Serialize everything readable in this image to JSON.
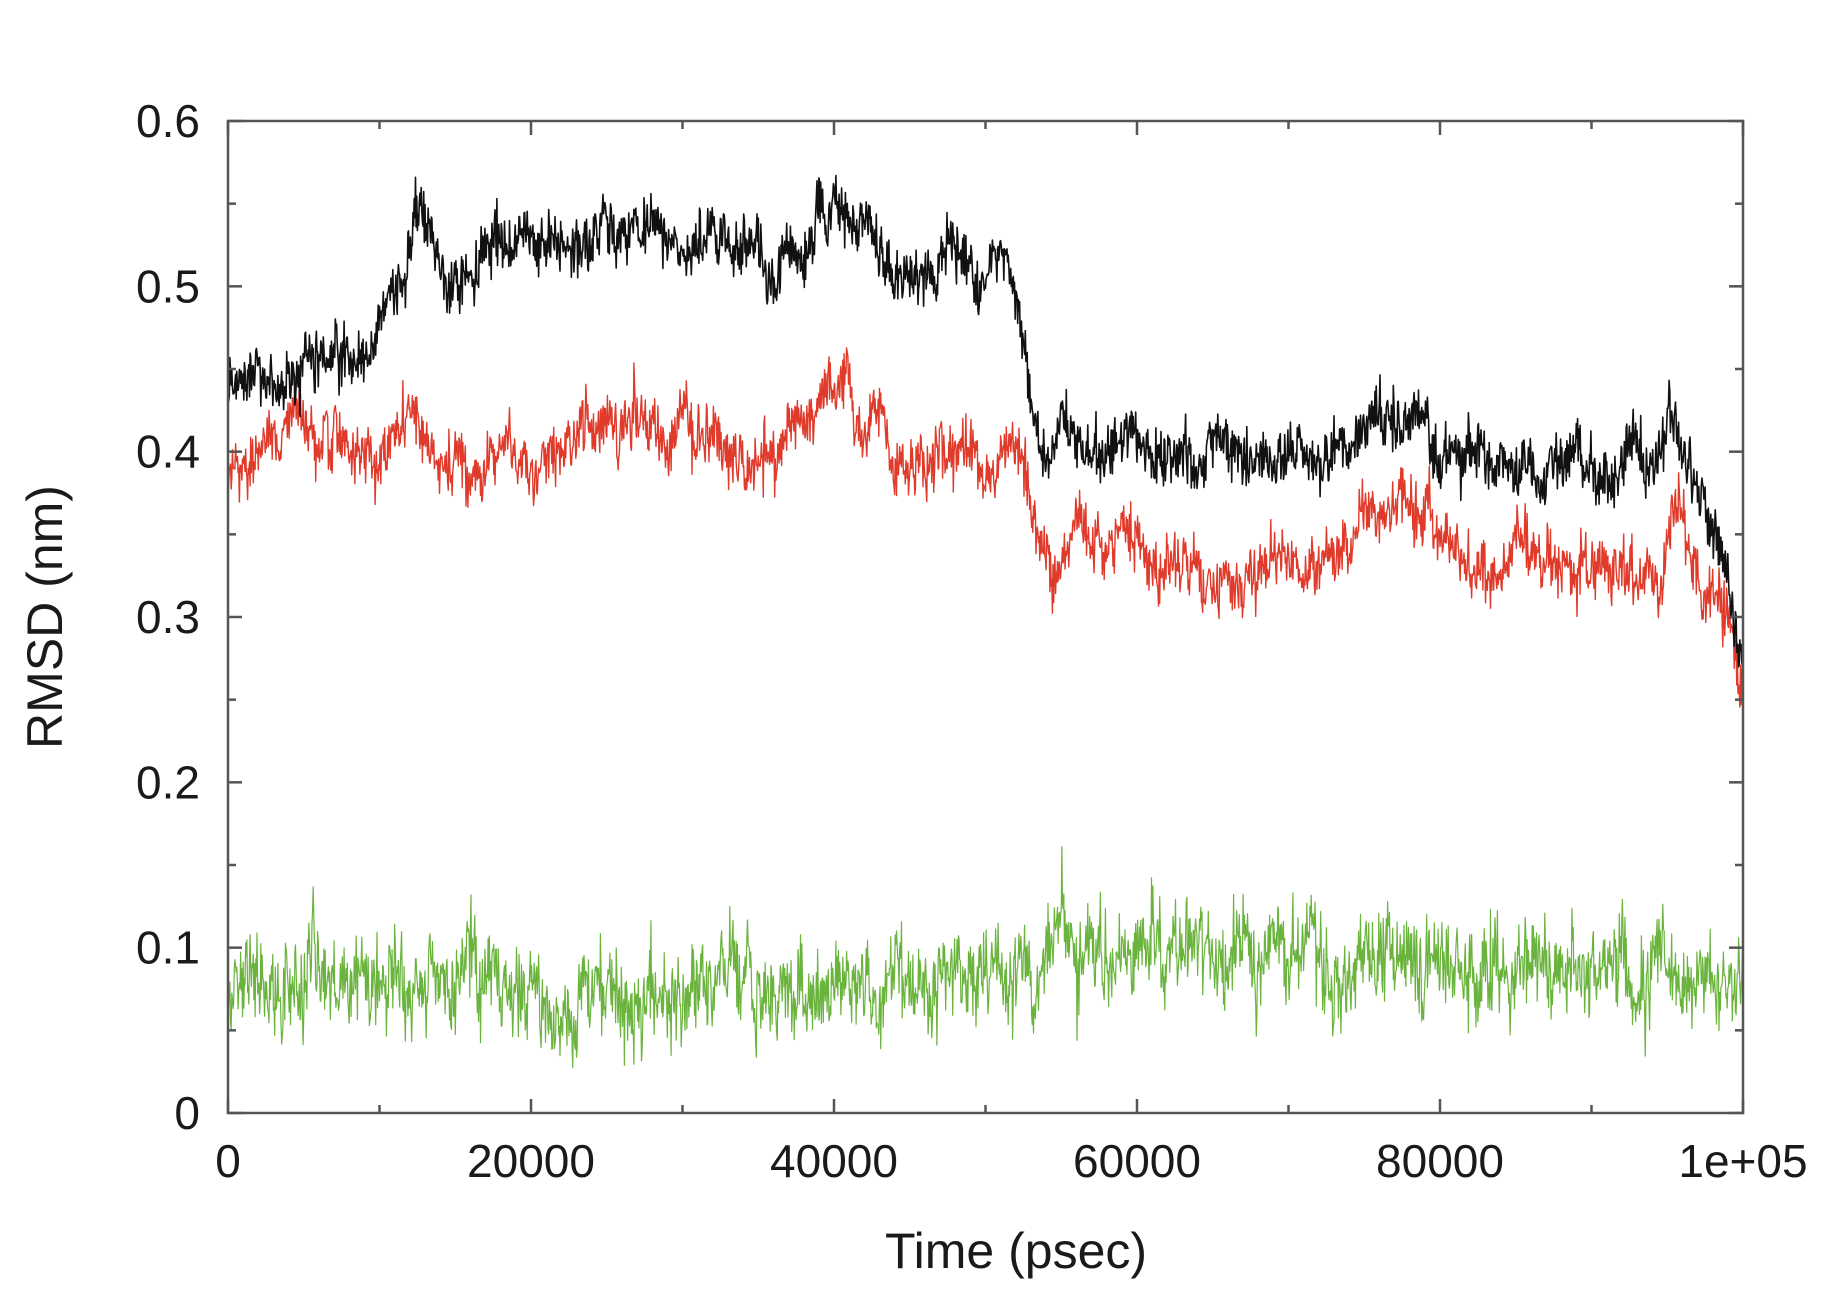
{
  "chart_data": {
    "type": "line",
    "title": "",
    "xlabel": "Time (psec)",
    "ylabel": "RMSD (nm)",
    "xlim": [
      0,
      100000
    ],
    "ylim": [
      0,
      0.6
    ],
    "x_ticks": [
      0,
      20000,
      40000,
      60000,
      80000,
      100000
    ],
    "x_tick_labels": [
      "0",
      "20000",
      "40000",
      "60000",
      "80000",
      "1e+05"
    ],
    "x_minor_ticks": [
      10000,
      30000,
      50000,
      70000,
      90000
    ],
    "y_ticks": [
      0,
      0.1,
      0.2,
      0.3,
      0.4,
      0.5,
      0.6
    ],
    "y_tick_labels": [
      "0",
      "0.1",
      "0.2",
      "0.3",
      "0.4",
      "0.5",
      "0.6"
    ],
    "y_minor_ticks": [
      0.05,
      0.15,
      0.25,
      0.35,
      0.45,
      0.55
    ],
    "grid": false,
    "legend": "none",
    "series": [
      {
        "color": "#111111",
        "noise": 0.014,
        "x": [
          0,
          2000,
          4000,
          6000,
          8000,
          9500,
          10500,
          12000,
          12800,
          14000,
          16000,
          18000,
          20000,
          22000,
          24000,
          26000,
          28000,
          30000,
          32000,
          34000,
          36000,
          38000,
          39500,
          40000,
          42000,
          43500,
          44000,
          46000,
          48000,
          50000,
          51000,
          52000,
          53000,
          54000,
          56000,
          58000,
          60000,
          62000,
          64000,
          66000,
          68000,
          70000,
          72000,
          74000,
          75000,
          76000,
          78000,
          80000,
          82000,
          84000,
          86000,
          88000,
          90000,
          92000,
          94000,
          95500,
          97000,
          98000,
          99000,
          100000
        ],
        "y": [
          0.44,
          0.45,
          0.44,
          0.45,
          0.46,
          0.45,
          0.5,
          0.52,
          0.54,
          0.51,
          0.51,
          0.52,
          0.53,
          0.53,
          0.52,
          0.53,
          0.53,
          0.52,
          0.53,
          0.52,
          0.51,
          0.52,
          0.53,
          0.55,
          0.53,
          0.52,
          0.5,
          0.5,
          0.5,
          0.51,
          0.52,
          0.5,
          0.43,
          0.4,
          0.41,
          0.4,
          0.4,
          0.4,
          0.39,
          0.4,
          0.4,
          0.4,
          0.39,
          0.4,
          0.41,
          0.43,
          0.42,
          0.41,
          0.4,
          0.39,
          0.39,
          0.39,
          0.4,
          0.39,
          0.39,
          0.42,
          0.38,
          0.36,
          0.33,
          0.28
        ]
      },
      {
        "color": "#e03a2b",
        "noise": 0.014,
        "x": [
          0,
          2000,
          4000,
          6000,
          8000,
          10000,
          12000,
          14000,
          16000,
          18000,
          20000,
          22000,
          24000,
          26000,
          28000,
          30000,
          32000,
          34000,
          36000,
          38000,
          40000,
          42000,
          43000,
          44000,
          46000,
          48000,
          50000,
          52000,
          53000,
          54000,
          56000,
          58000,
          60000,
          62000,
          64000,
          66000,
          68000,
          70000,
          72000,
          74000,
          76000,
          78000,
          80000,
          82000,
          84000,
          86000,
          88000,
          90000,
          92000,
          94000,
          95500,
          97000,
          98000,
          99000,
          100000
        ],
        "y": [
          0.39,
          0.4,
          0.41,
          0.4,
          0.4,
          0.4,
          0.43,
          0.39,
          0.39,
          0.4,
          0.4,
          0.41,
          0.41,
          0.42,
          0.41,
          0.41,
          0.4,
          0.39,
          0.4,
          0.42,
          0.43,
          0.42,
          0.41,
          0.38,
          0.39,
          0.4,
          0.4,
          0.41,
          0.37,
          0.33,
          0.35,
          0.34,
          0.34,
          0.33,
          0.33,
          0.33,
          0.32,
          0.33,
          0.33,
          0.34,
          0.37,
          0.36,
          0.35,
          0.33,
          0.33,
          0.34,
          0.32,
          0.33,
          0.32,
          0.33,
          0.36,
          0.33,
          0.31,
          0.29,
          0.25
        ]
      },
      {
        "color": "#6ab43e",
        "noise": 0.021,
        "x": [
          0,
          5000,
          10000,
          15000,
          20000,
          25000,
          30000,
          35000,
          40000,
          45000,
          50000,
          52500,
          55000,
          60000,
          65000,
          70000,
          75000,
          80000,
          85000,
          90000,
          95000,
          100000
        ],
        "y": [
          0.078,
          0.076,
          0.08,
          0.072,
          0.072,
          0.074,
          0.074,
          0.075,
          0.076,
          0.077,
          0.078,
          0.092,
          0.096,
          0.092,
          0.093,
          0.094,
          0.1,
          0.092,
          0.091,
          0.089,
          0.082,
          0.08
        ]
      }
    ]
  }
}
